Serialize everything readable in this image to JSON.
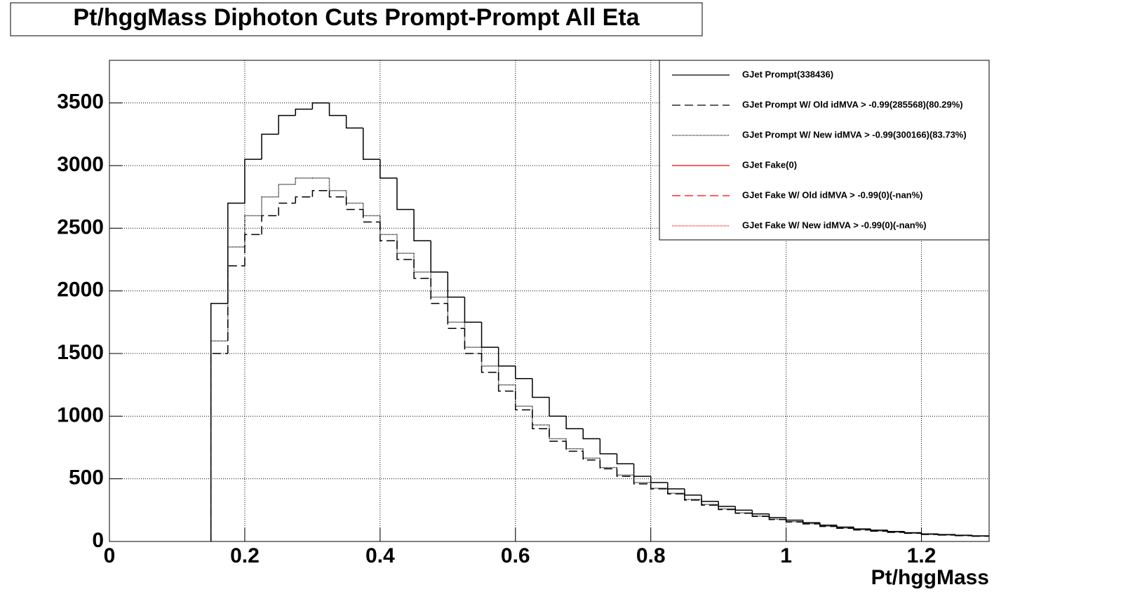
{
  "chart_data": {
    "type": "histogram",
    "title": "Pt/hggMass Diphoton Cuts Prompt-Prompt All Eta",
    "x_label": "Pt/hggMass",
    "bins": [
      0.15,
      0.175,
      0.2,
      0.225,
      0.25,
      0.275,
      0.3,
      0.325,
      0.35,
      0.375,
      0.4,
      0.425,
      0.45,
      0.475,
      0.5,
      0.525,
      0.55,
      0.575,
      0.6,
      0.625,
      0.65,
      0.675,
      0.7,
      0.725,
      0.75,
      0.775,
      0.8,
      0.825,
      0.85,
      0.875,
      0.9,
      0.925,
      0.95,
      0.975,
      1,
      1.025,
      1.05,
      1.075,
      1.1,
      1.125,
      1.15,
      1.175,
      1.2,
      1.225,
      1.25,
      1.275,
      1.3
    ],
    "series": [
      {
        "name": "GJet Prompt(338436)",
        "color": "#000000",
        "dash": "solid",
        "values": [
          1900,
          2700,
          3050,
          3250,
          3400,
          3450,
          3500,
          3400,
          3300,
          3050,
          2900,
          2650,
          2400,
          2150,
          1950,
          1750,
          1550,
          1400,
          1300,
          1150,
          1000,
          900,
          820,
          700,
          620,
          520,
          470,
          420,
          370,
          320,
          280,
          250,
          220,
          190,
          170,
          150,
          130,
          115,
          100,
          90,
          80,
          70,
          60,
          55,
          50,
          45
        ]
      },
      {
        "name": "GJet Prompt W/ Old idMVA > -0.99(285568)(80.29%)",
        "color": "#000000",
        "dash": "dashed",
        "values": [
          1500,
          2200,
          2450,
          2600,
          2700,
          2750,
          2800,
          2750,
          2650,
          2550,
          2400,
          2250,
          2100,
          1900,
          1700,
          1500,
          1350,
          1200,
          1050,
          900,
          800,
          720,
          650,
          580,
          520,
          460,
          420,
          380,
          330,
          290,
          255,
          225,
          200,
          175,
          155,
          140,
          120,
          105,
          92,
          82,
          73,
          65,
          56,
          51,
          46,
          42
        ]
      },
      {
        "name": "GJet Prompt W/ New idMVA > -0.99(300166)(83.73%)",
        "color": "#000000",
        "dash": "dotted",
        "values": [
          1600,
          2350,
          2600,
          2750,
          2850,
          2900,
          2900,
          2800,
          2700,
          2600,
          2450,
          2300,
          2150,
          1950,
          1750,
          1550,
          1400,
          1250,
          1080,
          930,
          820,
          740,
          665,
          590,
          530,
          470,
          425,
          385,
          335,
          295,
          260,
          228,
          203,
          178,
          158,
          142,
          122,
          107,
          94,
          84,
          75,
          66,
          57,
          52,
          47,
          43
        ]
      },
      {
        "name": "GJet Fake(0)",
        "color": "#ff0000",
        "dash": "solid",
        "values": [
          0,
          0,
          0,
          0,
          0,
          0,
          0,
          0,
          0,
          0,
          0,
          0,
          0,
          0,
          0,
          0,
          0,
          0,
          0,
          0,
          0,
          0,
          0,
          0,
          0,
          0,
          0,
          0,
          0,
          0,
          0,
          0,
          0,
          0,
          0,
          0,
          0,
          0,
          0,
          0,
          0,
          0,
          0,
          0,
          0,
          0
        ]
      },
      {
        "name": "GJet Fake W/ Old idMVA > -0.99(0)(-nan%)",
        "color": "#ff0000",
        "dash": "dashed",
        "values": [
          0,
          0,
          0,
          0,
          0,
          0,
          0,
          0,
          0,
          0,
          0,
          0,
          0,
          0,
          0,
          0,
          0,
          0,
          0,
          0,
          0,
          0,
          0,
          0,
          0,
          0,
          0,
          0,
          0,
          0,
          0,
          0,
          0,
          0,
          0,
          0,
          0,
          0,
          0,
          0,
          0,
          0,
          0,
          0,
          0,
          0
        ]
      },
      {
        "name": "GJet Fake W/ New idMVA > -0.99(0)(-nan%)",
        "color": "#ff0000",
        "dash": "dotted",
        "values": [
          0,
          0,
          0,
          0,
          0,
          0,
          0,
          0,
          0,
          0,
          0,
          0,
          0,
          0,
          0,
          0,
          0,
          0,
          0,
          0,
          0,
          0,
          0,
          0,
          0,
          0,
          0,
          0,
          0,
          0,
          0,
          0,
          0,
          0,
          0,
          0,
          0,
          0,
          0,
          0,
          0,
          0,
          0,
          0,
          0,
          0
        ]
      }
    ],
    "xlim": [
      0,
      1.3
    ],
    "ylim": [
      0,
      3840
    ],
    "xticks": [
      0,
      0.2,
      0.4,
      0.6,
      0.8,
      1,
      1.2
    ],
    "yticks": [
      0,
      500,
      1000,
      1500,
      2000,
      2500,
      3000,
      3500
    ],
    "grid": true,
    "legend": "top-right"
  }
}
